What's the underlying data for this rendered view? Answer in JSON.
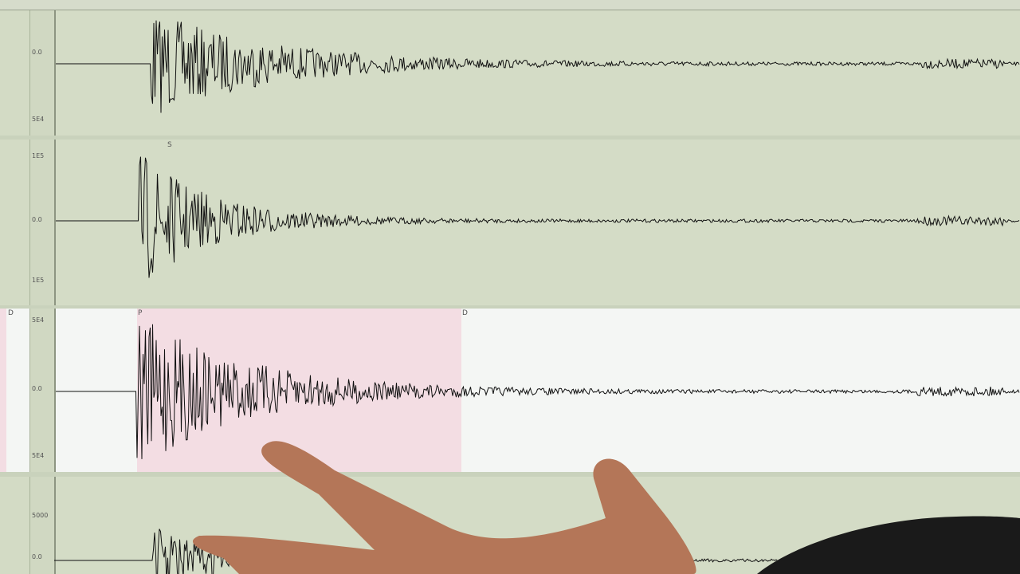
{
  "panels": [
    {
      "labels": {
        "top": "",
        "mid": "0.0",
        "bottom": "5E4"
      },
      "phase": ""
    },
    {
      "labels": {
        "top": "1E5",
        "mid": "0.0",
        "bottom": "1E5"
      },
      "phase": "S"
    },
    {
      "labels": {
        "top": "5E4",
        "mid": "0.0",
        "bottom": "5E4"
      },
      "phase": "P",
      "phase2": "D",
      "left_phase": "D"
    },
    {
      "labels": {
        "top": "5000",
        "mid": "0.0",
        "bottom": ""
      },
      "phase": ""
    }
  ],
  "colors": {
    "plot_bg": "#d4dcc6",
    "highlight_bg": "#f3dde3",
    "trace": "#111111",
    "skin": "#b77a5c"
  }
}
